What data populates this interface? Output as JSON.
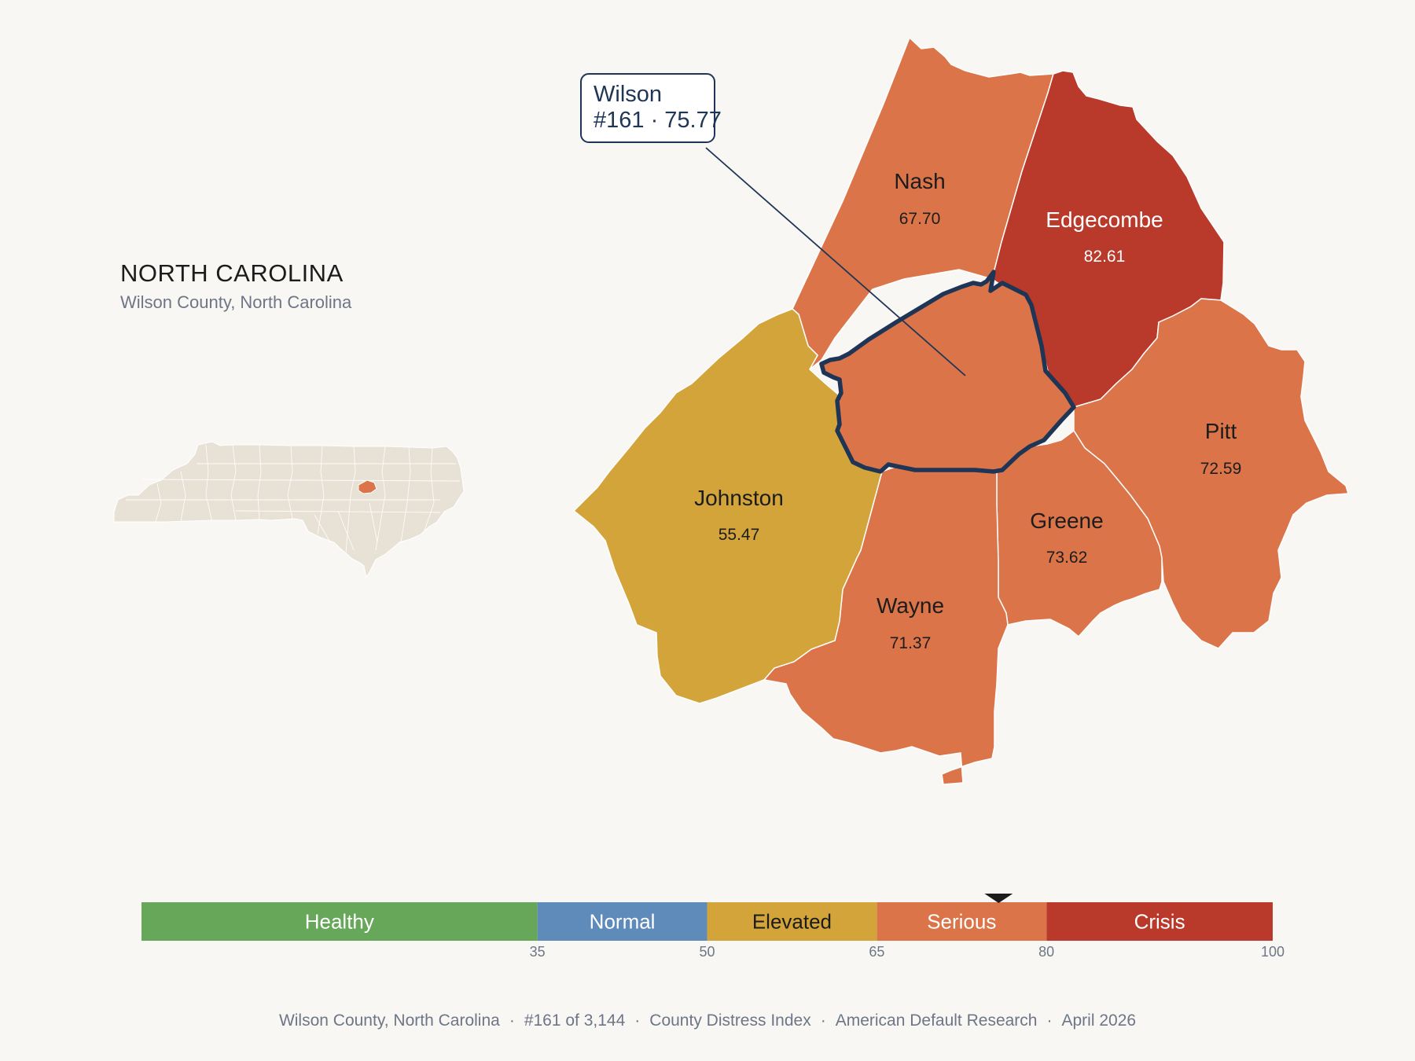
{
  "state": {
    "title": "NORTH CAROLINA",
    "subtitle": "Wilson County, North Carolina"
  },
  "callout": {
    "name": "Wilson",
    "detail": "#161 · 75.77"
  },
  "counties": [
    {
      "key": "nash",
      "name": "Nash",
      "value": "67.70",
      "fill": "#db7549",
      "text_color": "#1c1c1c"
    },
    {
      "key": "edgecombe",
      "name": "Edgecombe",
      "value": "82.61",
      "fill": "#b93a2b",
      "text_color": "#ffffff"
    },
    {
      "key": "johnston",
      "name": "Johnston",
      "value": "55.47",
      "fill": "#d3a43a",
      "text_color": "#1c1c1c"
    },
    {
      "key": "pitt",
      "name": "Pitt",
      "value": "72.59",
      "fill": "#db7549",
      "text_color": "#1c1c1c"
    },
    {
      "key": "greene",
      "name": "Greene",
      "value": "73.62",
      "fill": "#db7549",
      "text_color": "#1c1c1c"
    },
    {
      "key": "wayne",
      "name": "Wayne",
      "value": "71.37",
      "fill": "#db7549",
      "text_color": "#1c1c1c"
    },
    {
      "key": "wilson",
      "name": "Wilson",
      "value": "75.77",
      "fill": "#db7549",
      "highlight": true
    }
  ],
  "scale": {
    "bands": [
      {
        "label": "Healthy",
        "from": 0,
        "to": 35,
        "color": "#67a759",
        "text_color": "#ffffff"
      },
      {
        "label": "Normal",
        "from": 35,
        "to": 50,
        "color": "#5e8bba",
        "text_color": "#ffffff"
      },
      {
        "label": "Elevated",
        "from": 50,
        "to": 65,
        "color": "#d3a43a",
        "text_color": "#1c1c1c"
      },
      {
        "label": "Serious",
        "from": 65,
        "to": 80,
        "color": "#db7549",
        "text_color": "#ffffff"
      },
      {
        "label": "Crisis",
        "from": 80,
        "to": 100,
        "color": "#b93a2b",
        "text_color": "#ffffff"
      }
    ],
    "ticks": [
      "35",
      "50",
      "65",
      "80",
      "100"
    ],
    "marker_value": 75.77
  },
  "colors": {
    "highlight_outline": "#1f3556",
    "inset_fill": "#e7e1d6",
    "inset_highlight": "#db7549",
    "background": "#f9f7f4"
  },
  "footer": {
    "parts": [
      "Wilson County, North Carolina",
      "#161 of 3,144",
      "County Distress Index",
      "American Default Research",
      "April 2026"
    ],
    "separator": "·"
  }
}
